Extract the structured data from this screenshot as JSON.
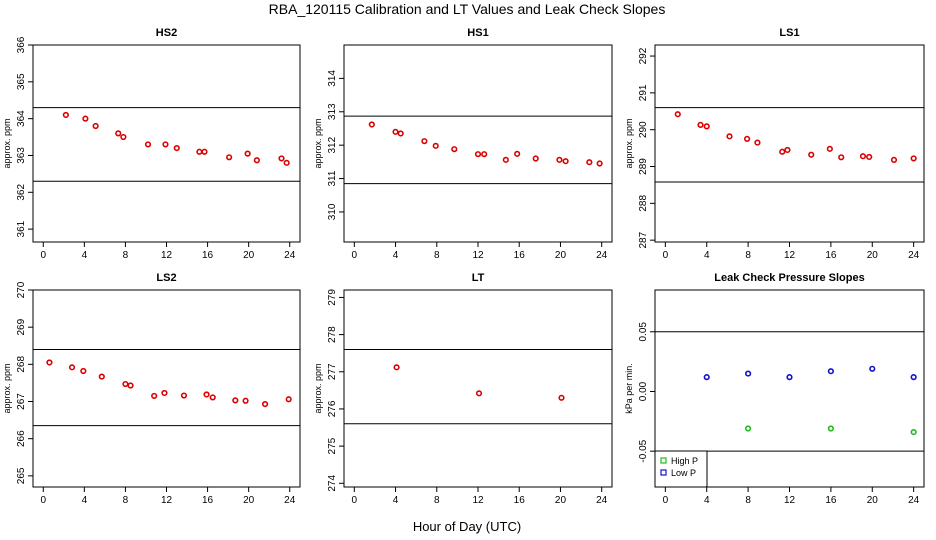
{
  "figure": {
    "title": "RBA_120115  Calibration and LT Values and Leak Check Slopes",
    "xlabel": "Hour of Day (UTC)"
  },
  "chart_data": [
    {
      "type": "scatter",
      "title": "HS2",
      "ylabel": "approx. ppm",
      "xlim": [
        -1,
        25
      ],
      "ylim": [
        360.65,
        366
      ],
      "xticks": [
        0,
        4,
        8,
        12,
        16,
        20,
        24
      ],
      "yticks": [
        361,
        362,
        363,
        364,
        365,
        366
      ],
      "hlines": [
        364.3,
        362.3
      ],
      "series": [
        {
          "color": "#dd0000",
          "x": [
            2.2,
            4.1,
            5.1,
            7.3,
            7.8,
            10.2,
            11.9,
            13.0,
            15.2,
            15.7,
            18.1,
            19.9,
            20.8,
            23.2,
            23.7
          ],
          "y": [
            364.1,
            364.0,
            363.8,
            363.6,
            363.5,
            363.3,
            363.3,
            363.2,
            363.1,
            363.1,
            362.95,
            363.05,
            362.87,
            362.92,
            362.8
          ]
        }
      ]
    },
    {
      "type": "scatter",
      "title": "HS1",
      "ylabel": "approx. ppm",
      "xlim": [
        -1,
        25
      ],
      "ylim": [
        309.1,
        315
      ],
      "xticks": [
        0,
        4,
        8,
        12,
        16,
        20,
        24
      ],
      "yticks": [
        310,
        311,
        312,
        313,
        314
      ],
      "hlines": [
        312.87,
        310.85
      ],
      "series": [
        {
          "color": "#dd0000",
          "x": [
            1.7,
            4.0,
            4.5,
            6.8,
            7.9,
            9.7,
            12.0,
            12.6,
            14.7,
            15.8,
            17.6,
            19.9,
            20.5,
            22.8,
            23.8
          ],
          "y": [
            312.62,
            312.4,
            312.35,
            312.12,
            311.98,
            311.88,
            311.73,
            311.73,
            311.56,
            311.74,
            311.6,
            311.56,
            311.52,
            311.49,
            311.45
          ]
        }
      ]
    },
    {
      "type": "scatter",
      "title": "LS1",
      "ylabel": "approx. ppm",
      "xlim": [
        -1,
        25
      ],
      "ylim": [
        286.95,
        292.3
      ],
      "xticks": [
        0,
        4,
        8,
        12,
        16,
        20,
        24
      ],
      "yticks": [
        287,
        288,
        289,
        290,
        291,
        292
      ],
      "hlines": [
        290.6,
        288.58
      ],
      "series": [
        {
          "color": "#dd0000",
          "x": [
            1.2,
            3.4,
            4.0,
            6.2,
            7.9,
            8.9,
            11.3,
            11.8,
            14.1,
            15.9,
            17.0,
            19.1,
            19.7,
            22.1,
            24.0
          ],
          "y": [
            290.42,
            290.13,
            290.09,
            289.82,
            289.75,
            289.65,
            289.4,
            289.45,
            289.32,
            289.48,
            289.25,
            289.28,
            289.26,
            289.18,
            289.22
          ]
        }
      ]
    },
    {
      "type": "scatter",
      "title": "LS2",
      "ylabel": "approx. ppm",
      "xlim": [
        -1,
        25
      ],
      "ylim": [
        264.7,
        270
      ],
      "xticks": [
        0,
        4,
        8,
        12,
        16,
        20,
        24
      ],
      "yticks": [
        265,
        266,
        267,
        268,
        269,
        270
      ],
      "hlines": [
        268.4,
        266.35
      ],
      "series": [
        {
          "color": "#dd0000",
          "x": [
            0.6,
            2.8,
            3.9,
            5.7,
            8.0,
            8.5,
            10.8,
            11.8,
            13.7,
            15.9,
            16.5,
            18.7,
            19.7,
            21.6,
            23.9
          ],
          "y": [
            268.05,
            267.92,
            267.82,
            267.67,
            267.47,
            267.43,
            267.15,
            267.23,
            267.16,
            267.19,
            267.11,
            267.03,
            267.02,
            266.93,
            267.06
          ]
        }
      ]
    },
    {
      "type": "scatter",
      "title": "LT",
      "ylabel": "approx. ppm",
      "xlim": [
        -1,
        25
      ],
      "ylim": [
        273.9,
        279.2
      ],
      "xticks": [
        0,
        4,
        8,
        12,
        16,
        20,
        24
      ],
      "yticks": [
        274,
        275,
        276,
        277,
        278,
        279
      ],
      "hlines": [
        277.6,
        275.6
      ],
      "series": [
        {
          "color": "#dd0000",
          "x": [
            4.1,
            12.1,
            20.1
          ],
          "y": [
            277.12,
            276.42,
            276.3
          ]
        }
      ]
    },
    {
      "type": "scatter",
      "title": "Leak Check Pressure Slopes",
      "ylabel": "kPa per min.",
      "xlim": [
        -1,
        25
      ],
      "ylim": [
        -0.08,
        0.085
      ],
      "xticks": [
        0,
        4,
        8,
        12,
        16,
        20,
        24
      ],
      "yticks": [
        -0.05,
        0.0,
        0.05
      ],
      "ytick_labels": [
        "-0.05",
        "0.00",
        "0.05"
      ],
      "hlines": [
        0.05,
        -0.05
      ],
      "legend": {
        "position": "bottom-left"
      },
      "series": [
        {
          "name": "High P",
          "color": "#22bb22",
          "x": [
            8,
            16,
            24
          ],
          "y": [
            -0.031,
            -0.031,
            -0.034
          ]
        },
        {
          "name": "Low P",
          "color": "#1111cc",
          "x": [
            4,
            8,
            12,
            16,
            20,
            24
          ],
          "y": [
            0.012,
            0.015,
            0.012,
            0.017,
            0.019,
            0.012
          ]
        }
      ]
    }
  ]
}
